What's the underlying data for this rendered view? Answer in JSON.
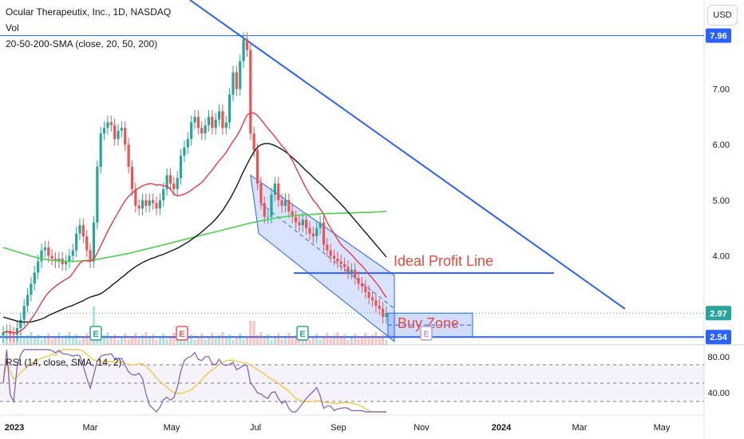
{
  "header": {
    "title": "Ocular Therapeutix, Inc., 1D, NASDAQ",
    "vol_label": "Vol",
    "sma_label": "20-50-200-SMA (close, 20, 50, 200)",
    "currency_button": "USD"
  },
  "rsi": {
    "label": "RSI (14, close, SMA, 14, 2)",
    "ticks": [
      "80.00",
      "40.00"
    ]
  },
  "colors": {
    "trendline": "#2962ff",
    "annotation_text": "#e84a3a",
    "sma20": "#f23645",
    "sma50": "#131722",
    "sma200": "#4ad24a",
    "up_candle": "#26a69a",
    "down_candle": "#ef5350",
    "rsi_line": "#7e57c2",
    "rsi_sma": "#f5c842",
    "earnings_up": "#26a69a",
    "earnings_down": "#ef5350",
    "earnings_future": "#b39ddb"
  },
  "chart_data": {
    "type": "candlestick",
    "title": "Ocular Therapeutix, Inc., 1D, NASDAQ",
    "ylim": [
      2.4,
      8.6
    ],
    "price_ticks": [
      "7.00",
      "6.00",
      "5.00",
      "4.00"
    ],
    "x_ticks": [
      "2023",
      "Mar",
      "May",
      "Jul",
      "Sep",
      "Nov",
      "2024",
      "Mar",
      "May"
    ],
    "price_labels": [
      "7.96",
      "2.97",
      "2.54"
    ],
    "annotations": [
      "Ideal Profit Line",
      "Buy Zone"
    ],
    "earnings_markers": [
      "E",
      "E",
      "E",
      "E"
    ],
    "series": [
      {
        "name": "Close",
        "values": [
          2.62,
          2.65,
          2.6,
          2.58,
          2.7,
          2.85,
          3.1,
          3.3,
          3.5,
          3.7,
          3.9,
          4.1,
          4.15,
          4.0,
          3.95,
          3.9,
          3.95,
          3.85,
          3.9,
          4.0,
          4.1,
          4.4,
          4.55,
          4.35,
          4.1,
          3.9,
          4.6,
          5.6,
          6.2,
          6.3,
          6.4,
          6.35,
          6.1,
          6.25,
          6.3,
          6.0,
          5.6,
          5.2,
          4.9,
          4.85,
          5.0,
          4.9,
          5.0,
          4.95,
          4.85,
          5.0,
          5.2,
          5.45,
          5.3,
          5.2,
          5.4,
          5.8,
          5.95,
          6.1,
          6.4,
          6.5,
          6.3,
          6.2,
          6.35,
          6.5,
          6.3,
          6.45,
          6.6,
          6.3,
          6.4,
          6.9,
          7.3,
          7.0,
          7.5,
          7.9,
          7.7,
          6.2,
          5.9,
          5.3,
          4.95,
          4.7,
          4.7,
          5.1,
          5.3,
          5.0,
          4.9,
          5.0,
          4.8,
          4.7,
          4.6,
          4.55,
          4.65,
          4.5,
          4.4,
          4.35,
          4.5,
          4.6,
          4.2,
          4.1,
          4.0,
          3.95,
          3.9,
          3.85,
          3.8,
          3.7,
          3.75,
          3.6,
          3.5,
          3.45,
          3.35,
          3.25,
          3.2,
          3.1,
          3.05,
          2.9,
          2.97
        ]
      },
      {
        "name": "SMA 20",
        "values": [
          2.62,
          2.64,
          2.63,
          2.62,
          2.62,
          2.65,
          2.7,
          2.77,
          2.86,
          2.95,
          3.05,
          3.16,
          3.26,
          3.34,
          3.4,
          3.45,
          3.5,
          3.54,
          3.58,
          3.61,
          3.69,
          3.78,
          3.87,
          3.91,
          3.91,
          3.9,
          3.94,
          4.05,
          4.18,
          4.31,
          4.44,
          4.56,
          4.67,
          4.78,
          4.89,
          4.99,
          5.07,
          5.13,
          5.18,
          5.22,
          5.26,
          5.28,
          5.3,
          5.29,
          5.27,
          5.28,
          5.26,
          5.25,
          5.2,
          5.11,
          5.08,
          5.09,
          5.11,
          5.14,
          5.18,
          5.23,
          5.27,
          5.32,
          5.39,
          5.47,
          5.54,
          5.63,
          5.71,
          5.78,
          5.86,
          5.96,
          6.06,
          6.15,
          6.26,
          6.4,
          6.53,
          6.57,
          6.57,
          6.52,
          6.45,
          6.37,
          6.29,
          6.22,
          6.14,
          6.06,
          5.98,
          5.91,
          5.82,
          5.72,
          5.59,
          5.46,
          5.33,
          5.21,
          5.1,
          5.0,
          4.93,
          4.84,
          4.75,
          4.6,
          4.5,
          4.4,
          4.3,
          4.2,
          4.14,
          4.08,
          4.02,
          3.95,
          3.88,
          3.82,
          3.75,
          3.66,
          3.6,
          3.52,
          3.44,
          3.34,
          3.25
        ]
      },
      {
        "name": "SMA 50",
        "values": [
          2.9,
          2.88,
          2.86,
          2.84,
          2.82,
          2.81,
          2.81,
          2.81,
          2.82,
          2.84,
          2.86,
          2.89,
          2.93,
          2.96,
          2.99,
          3.02,
          3.05,
          3.08,
          3.1,
          3.13,
          3.16,
          3.19,
          3.23,
          3.26,
          3.28,
          3.3,
          3.33,
          3.38,
          3.43,
          3.49,
          3.54,
          3.6,
          3.65,
          3.71,
          3.76,
          3.81,
          3.85,
          3.89,
          3.92,
          3.95,
          3.97,
          4.0,
          4.02,
          4.05,
          4.08,
          4.11,
          4.14,
          4.18,
          4.22,
          4.26,
          4.31,
          4.36,
          4.41,
          4.47,
          4.53,
          4.59,
          4.66,
          4.74,
          4.83,
          4.94,
          5.05,
          5.18,
          5.32,
          5.47,
          5.61,
          5.74,
          5.86,
          5.95,
          6.0,
          6.02,
          6.02,
          6.0,
          5.97,
          5.93,
          5.89,
          5.84,
          5.78,
          5.72,
          5.66,
          5.59,
          5.52,
          5.46,
          5.39,
          5.33,
          5.27,
          5.2,
          5.14,
          5.07,
          5.0,
          4.93,
          4.86,
          4.78,
          4.7,
          4.62,
          4.54,
          4.46,
          4.38,
          4.3,
          4.22,
          4.14,
          4.06,
          3.98
        ]
      },
      {
        "name": "SMA 200",
        "values": [
          4.15,
          4.1,
          4.05,
          4.0,
          3.96,
          3.93,
          3.91,
          3.9,
          3.9,
          3.91,
          3.93,
          3.95,
          3.98,
          4.01,
          4.04,
          4.08,
          4.12,
          4.16,
          4.2,
          4.24,
          4.28,
          4.32,
          4.36,
          4.4,
          4.44,
          4.48,
          4.52,
          4.56,
          4.6,
          4.63,
          4.66,
          4.69,
          4.71,
          4.73,
          4.74,
          4.75,
          4.76,
          4.76,
          4.77,
          4.77,
          4.78,
          4.78,
          4.79,
          4.8
        ]
      }
    ]
  }
}
